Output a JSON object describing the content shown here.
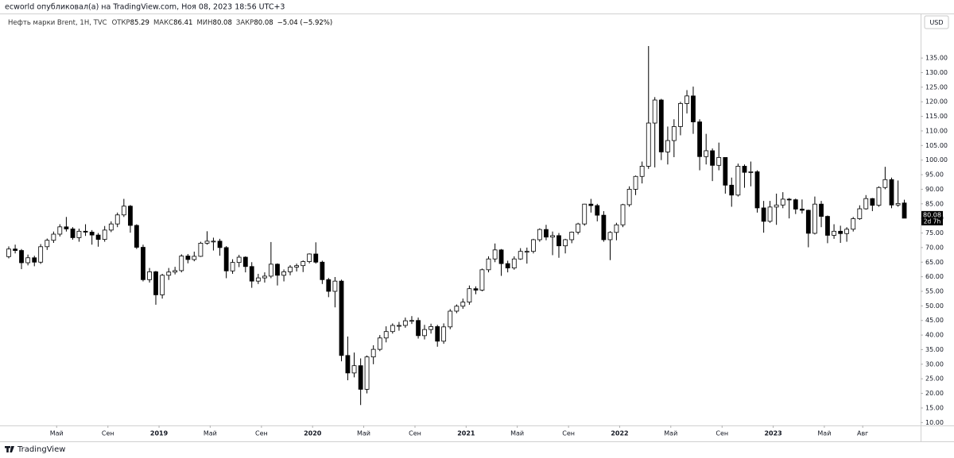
{
  "header": {
    "published": "ecworld опубликовал(а) на TradingView.com, Ноя 08, 2023 18:56 UTC+3"
  },
  "legend": {
    "symbol": "Нефть марки Brent, 1Н, TVC",
    "open_label": "ОТКР",
    "open": 85.29,
    "high_label": "МАКС",
    "high": 86.41,
    "low_label": "МИН",
    "low": 80.08,
    "close_label": "ЗАКР",
    "close": 80.08,
    "change": "−5.04 (−5.92%)"
  },
  "currency": "USD",
  "footer": "TradingView",
  "chart_data": {
    "type": "candlestick",
    "x": [
      2018.021,
      2018.063,
      2018.104,
      2018.146,
      2018.188,
      2018.229,
      2018.271,
      2018.313,
      2018.354,
      2018.396,
      2018.438,
      2018.479,
      2018.521,
      2018.563,
      2018.604,
      2018.646,
      2018.688,
      2018.729,
      2018.771,
      2018.813,
      2018.854,
      2018.896,
      2018.938,
      2018.979,
      2019.021,
      2019.063,
      2019.104,
      2019.146,
      2019.188,
      2019.229,
      2019.271,
      2019.313,
      2019.354,
      2019.396,
      2019.438,
      2019.479,
      2019.521,
      2019.563,
      2019.604,
      2019.646,
      2019.688,
      2019.729,
      2019.771,
      2019.813,
      2019.854,
      2019.896,
      2019.938,
      2019.979,
      2020.021,
      2020.063,
      2020.104,
      2020.146,
      2020.188,
      2020.229,
      2020.271,
      2020.313,
      2020.354,
      2020.396,
      2020.438,
      2020.479,
      2020.521,
      2020.563,
      2020.604,
      2020.646,
      2020.688,
      2020.729,
      2020.771,
      2020.813,
      2020.854,
      2020.896,
      2020.938,
      2020.979,
      2021.021,
      2021.063,
      2021.104,
      2021.146,
      2021.188,
      2021.229,
      2021.271,
      2021.313,
      2021.354,
      2021.396,
      2021.438,
      2021.479,
      2021.521,
      2021.563,
      2021.604,
      2021.646,
      2021.688,
      2021.729,
      2021.771,
      2021.813,
      2021.854,
      2021.896,
      2021.938,
      2021.979,
      2022.021,
      2022.063,
      2022.104,
      2022.146,
      2022.188,
      2022.229,
      2022.271,
      2022.313,
      2022.354,
      2022.396,
      2022.438,
      2022.479,
      2022.521,
      2022.563,
      2022.604,
      2022.646,
      2022.688,
      2022.729,
      2022.771,
      2022.813,
      2022.854,
      2022.896,
      2022.938,
      2022.979,
      2023.021,
      2023.063,
      2023.104,
      2023.146,
      2023.188,
      2023.229,
      2023.271,
      2023.313,
      2023.354,
      2023.396,
      2023.438,
      2023.479,
      2023.521,
      2023.563,
      2023.604,
      2023.646,
      2023.688,
      2023.729,
      2023.771,
      2023.813,
      2023.854
    ],
    "ohlc": [
      [
        66.9,
        70.4,
        66.3,
        69.5
      ],
      [
        69.5,
        71.0,
        68.0,
        69.0
      ],
      [
        69.0,
        69.5,
        62.6,
        64.8
      ],
      [
        64.8,
        67.6,
        63.9,
        66.5
      ],
      [
        66.5,
        67.2,
        63.6,
        65.0
      ],
      [
        65.0,
        71.2,
        64.4,
        70.3
      ],
      [
        70.3,
        73.1,
        69.2,
        72.5
      ],
      [
        72.5,
        75.5,
        71.6,
        74.6
      ],
      [
        74.6,
        78.0,
        73.8,
        77.1
      ],
      [
        77.1,
        80.5,
        75.5,
        76.4
      ],
      [
        76.4,
        77.0,
        72.7,
        73.4
      ],
      [
        73.4,
        76.5,
        72.0,
        75.6
      ],
      [
        75.6,
        78.0,
        74.0,
        75.3
      ],
      [
        75.3,
        76.0,
        71.0,
        74.3
      ],
      [
        74.3,
        75.0,
        70.3,
        72.8
      ],
      [
        72.8,
        77.4,
        72.0,
        76.0
      ],
      [
        76.0,
        79.0,
        75.3,
        78.1
      ],
      [
        78.1,
        82.0,
        77.0,
        81.2
      ],
      [
        81.2,
        86.7,
        80.5,
        84.2
      ],
      [
        84.2,
        84.6,
        75.1,
        77.6
      ],
      [
        77.6,
        78.0,
        69.5,
        70.1
      ],
      [
        70.1,
        71.0,
        58.4,
        59.0
      ],
      [
        59.0,
        63.0,
        58.0,
        61.7
      ],
      [
        61.7,
        62.0,
        50.4,
        53.8
      ],
      [
        53.8,
        61.0,
        52.5,
        60.5
      ],
      [
        60.5,
        63.0,
        58.9,
        61.6
      ],
      [
        61.6,
        63.4,
        60.8,
        62.1
      ],
      [
        62.1,
        67.7,
        61.5,
        67.1
      ],
      [
        67.1,
        67.8,
        64.6,
        65.9
      ],
      [
        65.9,
        68.6,
        65.3,
        67.0
      ],
      [
        67.0,
        72.0,
        66.8,
        71.5
      ],
      [
        71.5,
        75.6,
        71.0,
        72.2
      ],
      [
        72.2,
        73.4,
        69.0,
        72.2
      ],
      [
        72.2,
        73.0,
        67.2,
        70.0
      ],
      [
        70.0,
        70.5,
        59.5,
        62.0
      ],
      [
        62.0,
        66.0,
        61.0,
        64.9
      ],
      [
        64.9,
        67.5,
        63.3,
        66.7
      ],
      [
        66.7,
        67.0,
        61.5,
        63.5
      ],
      [
        63.5,
        65.0,
        56.2,
        58.5
      ],
      [
        58.5,
        61.0,
        57.5,
        59.6
      ],
      [
        59.6,
        61.5,
        58.0,
        60.2
      ],
      [
        60.2,
        71.9,
        59.5,
        64.3
      ],
      [
        64.3,
        64.6,
        57.0,
        60.5
      ],
      [
        60.5,
        62.5,
        58.4,
        61.7
      ],
      [
        61.7,
        64.0,
        60.5,
        63.3
      ],
      [
        63.3,
        64.5,
        61.8,
        63.8
      ],
      [
        63.8,
        65.6,
        61.6,
        65.2
      ],
      [
        65.2,
        68.0,
        64.6,
        67.8
      ],
      [
        67.8,
        71.8,
        64.5,
        65.0
      ],
      [
        65.0,
        65.5,
        57.5,
        59.0
      ],
      [
        59.0,
        59.6,
        53.0,
        55.0
      ],
      [
        55.0,
        59.9,
        49.5,
        58.5
      ],
      [
        58.5,
        59.0,
        31.0,
        33.0
      ],
      [
        33.0,
        39.5,
        24.5,
        27.0
      ],
      [
        27.0,
        34.0,
        25.5,
        29.5
      ],
      [
        29.5,
        32.0,
        16.0,
        21.4
      ],
      [
        21.4,
        33.0,
        20.0,
        32.5
      ],
      [
        32.5,
        36.5,
        30.0,
        35.1
      ],
      [
        35.1,
        40.0,
        34.5,
        39.0
      ],
      [
        39.0,
        43.0,
        37.5,
        41.2
      ],
      [
        41.2,
        44.0,
        40.5,
        43.3
      ],
      [
        43.3,
        44.5,
        41.5,
        43.3
      ],
      [
        43.3,
        46.0,
        42.5,
        44.9
      ],
      [
        44.9,
        46.5,
        43.8,
        45.0
      ],
      [
        45.0,
        46.0,
        38.8,
        39.8
      ],
      [
        39.8,
        43.5,
        38.5,
        41.9
      ],
      [
        41.9,
        43.9,
        40.5,
        42.9
      ],
      [
        42.9,
        43.5,
        36.0,
        37.9
      ],
      [
        37.9,
        44.0,
        37.0,
        42.8
      ],
      [
        42.8,
        48.9,
        42.0,
        48.2
      ],
      [
        48.2,
        50.5,
        47.5,
        49.9
      ],
      [
        49.9,
        52.5,
        49.0,
        51.3
      ],
      [
        51.3,
        57.0,
        50.4,
        55.9
      ],
      [
        55.9,
        56.7,
        54.0,
        55.4
      ],
      [
        55.4,
        62.8,
        55.0,
        62.4
      ],
      [
        62.4,
        67.0,
        61.5,
        66.1
      ],
      [
        66.1,
        71.4,
        65.0,
        69.2
      ],
      [
        69.2,
        69.5,
        60.3,
        64.5
      ],
      [
        64.5,
        65.5,
        61.5,
        63.0
      ],
      [
        63.0,
        67.0,
        62.4,
        66.1
      ],
      [
        66.1,
        69.8,
        65.8,
        68.7
      ],
      [
        68.7,
        70.0,
        64.5,
        68.7
      ],
      [
        68.7,
        73.0,
        68.0,
        72.7
      ],
      [
        72.7,
        76.6,
        72.0,
        76.2
      ],
      [
        76.2,
        77.8,
        72.5,
        73.6
      ],
      [
        73.6,
        75.5,
        67.4,
        74.1
      ],
      [
        74.1,
        75.0,
        66.5,
        70.6
      ],
      [
        70.6,
        73.0,
        68.0,
        72.7
      ],
      [
        72.7,
        75.5,
        71.5,
        75.3
      ],
      [
        75.3,
        78.5,
        74.5,
        78.1
      ],
      [
        78.1,
        85.0,
        77.5,
        84.9
      ],
      [
        84.9,
        86.7,
        82.0,
        84.4
      ],
      [
        84.4,
        85.0,
        79.0,
        81.1
      ],
      [
        81.1,
        82.5,
        72.0,
        72.7
      ],
      [
        72.7,
        75.6,
        65.7,
        75.2
      ],
      [
        75.2,
        78.5,
        72.5,
        77.8
      ],
      [
        77.8,
        85.0,
        77.0,
        84.7
      ],
      [
        84.7,
        91.0,
        84.0,
        90.0
      ],
      [
        90.0,
        94.7,
        88.0,
        94.4
      ],
      [
        94.4,
        99.5,
        92.0,
        97.9
      ],
      [
        97.9,
        139.1,
        97.0,
        112.7
      ],
      [
        112.7,
        121.6,
        97.5,
        120.6
      ],
      [
        120.6,
        121.0,
        100.0,
        102.8
      ],
      [
        102.8,
        111.5,
        98.5,
        106.7
      ],
      [
        106.7,
        114.0,
        101.0,
        111.5
      ],
      [
        111.5,
        120.0,
        108.5,
        119.4
      ],
      [
        119.4,
        124.0,
        116.0,
        122.0
      ],
      [
        122.0,
        125.2,
        109.0,
        113.1
      ],
      [
        113.1,
        114.0,
        96.5,
        101.2
      ],
      [
        101.2,
        109.0,
        98.5,
        103.2
      ],
      [
        103.2,
        104.0,
        92.8,
        98.2
      ],
      [
        98.2,
        106.0,
        96.5,
        100.9
      ],
      [
        100.9,
        101.0,
        88.5,
        91.4
      ],
      [
        91.4,
        94.0,
        84.0,
        88.0
      ],
      [
        88.0,
        98.8,
        87.5,
        97.9
      ],
      [
        97.9,
        98.5,
        90.5,
        95.8
      ],
      [
        95.8,
        99.5,
        91.0,
        96.0
      ],
      [
        96.0,
        96.5,
        82.0,
        83.6
      ],
      [
        83.6,
        86.0,
        75.1,
        79.0
      ],
      [
        79.0,
        86.0,
        78.5,
        83.9
      ],
      [
        83.9,
        88.5,
        77.8,
        84.6
      ],
      [
        84.6,
        89.0,
        83.5,
        86.6
      ],
      [
        86.6,
        87.0,
        80.0,
        86.4
      ],
      [
        86.4,
        86.8,
        81.5,
        83.2
      ],
      [
        83.2,
        86.5,
        81.7,
        82.8
      ],
      [
        82.8,
        83.0,
        70.1,
        74.9
      ],
      [
        74.9,
        87.5,
        74.5,
        84.9
      ],
      [
        84.9,
        86.0,
        77.0,
        80.7
      ],
      [
        80.7,
        81.0,
        71.5,
        74.2
      ],
      [
        74.2,
        78.0,
        73.0,
        75.6
      ],
      [
        75.6,
        77.5,
        71.6,
        74.8
      ],
      [
        74.8,
        77.0,
        72.0,
        76.3
      ],
      [
        76.3,
        80.5,
        75.5,
        79.9
      ],
      [
        79.9,
        84.5,
        79.5,
        83.3
      ],
      [
        83.3,
        88.0,
        83.0,
        86.8
      ],
      [
        86.8,
        87.0,
        82.5,
        84.5
      ],
      [
        84.5,
        91.0,
        84.0,
        90.6
      ],
      [
        90.6,
        97.7,
        90.0,
        93.3
      ],
      [
        93.3,
        94.0,
        83.5,
        84.6
      ],
      [
        84.6,
        93.0,
        84.0,
        85.12
      ],
      [
        85.29,
        86.41,
        80.08,
        80.08
      ]
    ],
    "up_color": "#ffffff",
    "down_color": "#000000",
    "outline_color": "#000000",
    "xlim": [
      2017.99,
      2023.96
    ],
    "xticks": [
      {
        "value": 2018.333,
        "label": "Май"
      },
      {
        "value": 2018.667,
        "label": "Сен"
      },
      2019,
      {
        "value": 2019.333,
        "label": "Май"
      },
      {
        "value": 2019.667,
        "label": "Сен"
      },
      2020,
      {
        "value": 2020.333,
        "label": "Май"
      },
      {
        "value": 2020.667,
        "label": "Сен"
      },
      2021,
      {
        "value": 2021.333,
        "label": "Май"
      },
      {
        "value": 2021.667,
        "label": "Сен"
      },
      2022,
      {
        "value": 2022.333,
        "label": "Май"
      },
      {
        "value": 2022.667,
        "label": "Сен"
      },
      2023,
      {
        "value": 2023.333,
        "label": "Май"
      },
      {
        "value": 2023.583,
        "label": "Авг"
      }
    ],
    "ylim": [
      9,
      150
    ],
    "yticks": [
      {
        "value": 10,
        "label": "10.00"
      },
      {
        "value": 15,
        "label": "15.00"
      },
      {
        "value": 20,
        "label": "20.00"
      },
      {
        "value": 25,
        "label": "25.00"
      },
      {
        "value": 30,
        "label": "30.00"
      },
      {
        "value": 35,
        "label": "35.00"
      },
      {
        "value": 40,
        "label": "40.00"
      },
      {
        "value": 45,
        "label": "45.00"
      },
      {
        "value": 50,
        "label": "50.00"
      },
      {
        "value": 55,
        "label": "55.00"
      },
      {
        "value": 60,
        "label": "60.00"
      },
      {
        "value": 65,
        "label": "65.00"
      },
      {
        "value": 70,
        "label": "70.00"
      },
      {
        "value": 75,
        "label": "75.00"
      },
      {
        "value": 80,
        "label": "80.00"
      },
      {
        "value": 85,
        "label": "85.00"
      },
      {
        "value": 90,
        "label": "90.00"
      },
      {
        "value": 95,
        "label": "95.00"
      },
      {
        "value": 100,
        "label": "100.00"
      },
      {
        "value": 105,
        "label": "105.00"
      },
      {
        "value": 110,
        "label": "110.00"
      },
      {
        "value": 115,
        "label": "115.00"
      },
      {
        "value": 120,
        "label": "120.00"
      },
      {
        "value": 125,
        "label": "125.00"
      },
      {
        "value": 130,
        "label": "130.00"
      },
      {
        "value": 135,
        "label": "135.00"
      }
    ],
    "grid": false,
    "last_price": 80.08,
    "countdown": "2d 7h"
  }
}
